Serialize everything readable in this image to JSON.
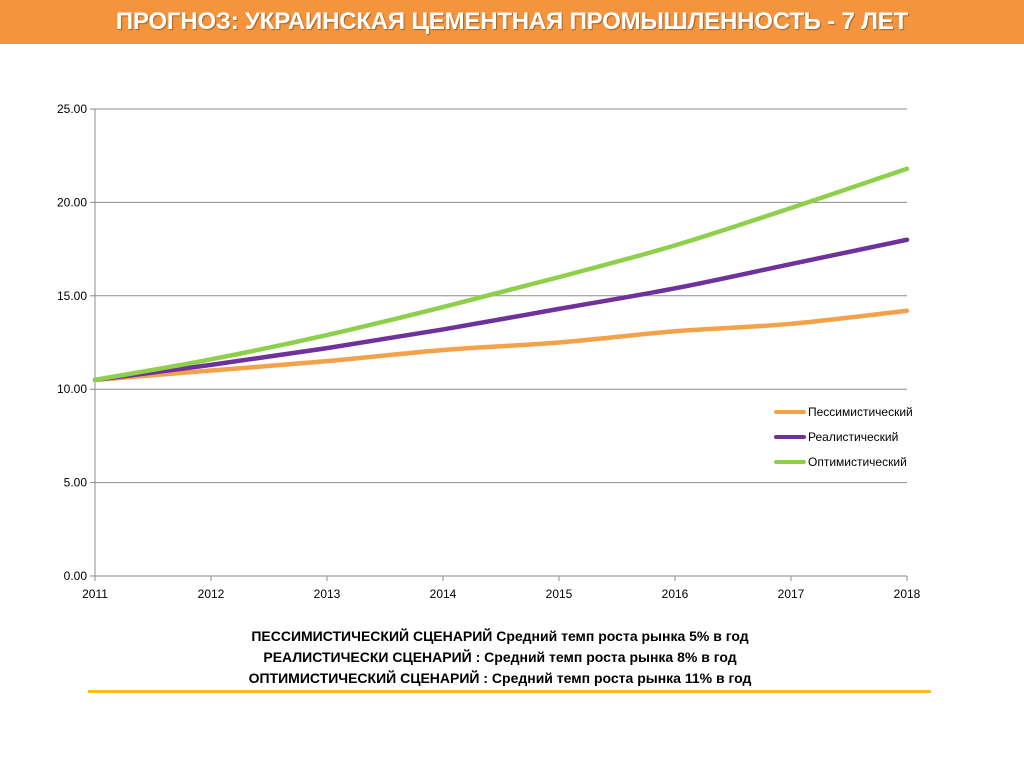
{
  "header": {
    "title": "ПРОГНОЗ: УКРАИНСКАЯ ЦЕМЕНТНАЯ ПРОМЫШЛЕННОСТЬ - 7 ЛЕТ"
  },
  "colors": {
    "header_bg": "#f4953e",
    "pessimistic": "#f4a24a",
    "realistic": "#6f329a",
    "optimistic": "#8ed04b",
    "divider": "#f7c11a"
  },
  "chart_data": {
    "type": "line",
    "x": [
      "2011",
      "2012",
      "2013",
      "2014",
      "2015",
      "2016",
      "2017",
      "2018"
    ],
    "ylim": [
      0,
      25
    ],
    "yticks": [
      "0.00",
      "5.00",
      "10.00",
      "15.00",
      "20.00",
      "25.00"
    ],
    "grid": true,
    "legend_position": "right",
    "series": [
      {
        "name": "Пессимистический",
        "color": "#f4a24a",
        "values": [
          10.5,
          11.0,
          11.5,
          12.1,
          12.5,
          13.1,
          13.5,
          14.2
        ]
      },
      {
        "name": "Реалистический",
        "color": "#6f329a",
        "values": [
          10.5,
          11.3,
          12.2,
          13.2,
          14.3,
          15.4,
          16.7,
          18.0
        ]
      },
      {
        "name": "Оптимистический",
        "color": "#8ed04b",
        "values": [
          10.5,
          11.6,
          12.9,
          14.4,
          16.0,
          17.7,
          19.7,
          21.8
        ]
      }
    ]
  },
  "notes": [
    "ПЕССИМИСТИЧЕСКИЙ СЦЕНАРИЙ  Средний темп роста рынка 5% в год",
    "РЕАЛИСТИЧЕСКИ СЦЕНАРИЙ : Средний темп роста рынка 8% в год",
    "ОПТИМИСТИЧЕСКИЙ СЦЕНАРИЙ : Средний темп роста рынка 11% в год"
  ]
}
